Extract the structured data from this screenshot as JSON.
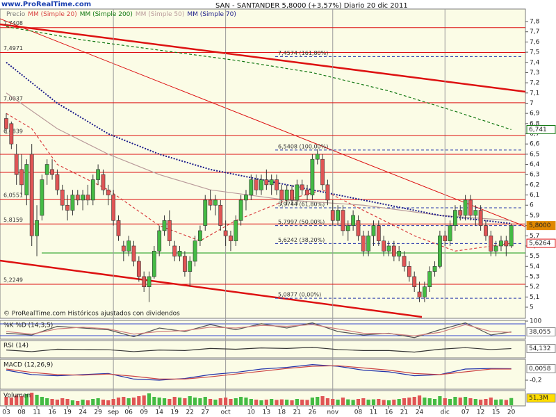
{
  "header": {
    "site": "www.ProRealTime.com",
    "title": "SAN - SANTANDER   5,8000 (+3,57%)   Diario  20 dic 2011",
    "footer": "© ProRealTime.com  Históricos ajustados con dividendos"
  },
  "chart_data": {
    "type": "candlestick",
    "categories": [
      "03",
      null,
      null,
      "08",
      null,
      null,
      "11",
      null,
      null,
      "16",
      null,
      null,
      "19",
      null,
      null,
      "24",
      null,
      null,
      "29",
      null,
      null,
      "sep",
      null,
      null,
      "06",
      null,
      null,
      "09",
      null,
      null,
      "14",
      null,
      null,
      "19",
      null,
      null,
      "22",
      null,
      null,
      "27",
      null,
      null,
      null,
      "oct",
      null,
      null,
      null,
      null,
      "10",
      null,
      null,
      "13",
      null,
      null,
      "18",
      null,
      null,
      "21",
      null,
      null,
      "26",
      null,
      null,
      null,
      "nov",
      null,
      null,
      null,
      null,
      "08",
      null,
      null,
      "11",
      null,
      null,
      "16",
      null,
      null,
      "21",
      null,
      null,
      "24",
      null,
      null,
      null,
      null,
      "dic",
      null,
      null,
      null,
      "07",
      null,
      null,
      "12",
      null,
      null,
      "15",
      null,
      null,
      "20"
    ],
    "price": {
      "name": "Precio",
      "up_color": "#44bb44",
      "down_color": "#e05555",
      "open": [
        6.85,
        6.8,
        6.5,
        6.35,
        6.1,
        6.5,
        5.7,
        5.9,
        6.3,
        6.35,
        6.3,
        6.15,
        6.0,
        5.95,
        6.1,
        6.05,
        6.1,
        6.05,
        6.25,
        6.3,
        6.15,
        6.1,
        5.85,
        5.6,
        5.55,
        5.6,
        5.45,
        5.3,
        5.2,
        5.3,
        5.55,
        5.75,
        5.85,
        5.6,
        5.5,
        5.5,
        5.35,
        5.45,
        5.65,
        5.8,
        6.05,
        6.0,
        6.0,
        5.75,
        5.7,
        5.65,
        5.85,
        6.05,
        6.1,
        6.25,
        6.15,
        6.25,
        6.2,
        6.25,
        6.15,
        6.05,
        6.15,
        6.05,
        6.2,
        6.15,
        6.1,
        6.45,
        6.45,
        6.2,
        5.95,
        5.85,
        5.95,
        5.75,
        5.8,
        5.85,
        5.7,
        5.55,
        5.7,
        5.8,
        5.65,
        5.55,
        5.6,
        5.5,
        5.5,
        5.4,
        5.3,
        5.15,
        5.1,
        5.2,
        5.35,
        5.4,
        5.7,
        5.65,
        5.8,
        5.95,
        5.9,
        6.05,
        5.9,
        5.95,
        5.8,
        5.7,
        5.55,
        5.6,
        5.65,
        5.6
      ],
      "high": [
        6.9,
        6.82,
        6.6,
        6.5,
        6.45,
        6.6,
        6.0,
        6.3,
        6.45,
        6.45,
        6.35,
        6.2,
        6.1,
        6.15,
        6.15,
        6.15,
        6.2,
        6.3,
        6.4,
        6.35,
        6.2,
        6.15,
        5.9,
        5.65,
        5.7,
        5.65,
        5.5,
        5.35,
        5.35,
        5.6,
        5.8,
        5.9,
        5.95,
        5.65,
        5.6,
        5.55,
        5.5,
        5.7,
        5.8,
        6.1,
        6.15,
        6.1,
        6.05,
        5.85,
        5.75,
        5.9,
        6.1,
        6.15,
        6.3,
        6.3,
        6.3,
        6.35,
        6.3,
        6.3,
        6.2,
        6.2,
        6.2,
        6.25,
        6.25,
        6.2,
        6.5,
        6.55,
        6.5,
        6.25,
        6.05,
        6.0,
        6.0,
        5.85,
        5.95,
        5.9,
        5.75,
        5.75,
        5.85,
        5.85,
        5.7,
        5.65,
        5.65,
        5.6,
        5.55,
        5.45,
        5.35,
        5.25,
        5.25,
        5.4,
        5.45,
        5.75,
        5.75,
        5.85,
        6.0,
        6.0,
        6.1,
        6.1,
        6.0,
        6.0,
        5.85,
        5.75,
        5.65,
        5.7,
        5.7,
        5.82
      ],
      "low": [
        6.7,
        6.55,
        6.2,
        6.1,
        6.0,
        5.6,
        5.5,
        5.85,
        6.2,
        6.25,
        6.1,
        5.95,
        5.85,
        5.9,
        6.0,
        5.95,
        6.0,
        6.0,
        6.2,
        6.1,
        6.0,
        5.8,
        5.65,
        5.45,
        5.5,
        5.4,
        5.25,
        5.15,
        5.05,
        5.28,
        5.5,
        5.7,
        5.6,
        5.45,
        5.45,
        5.3,
        5.2,
        5.4,
        5.6,
        5.75,
        5.95,
        5.9,
        5.75,
        5.6,
        5.55,
        5.6,
        5.8,
        5.95,
        6.05,
        6.1,
        6.1,
        6.15,
        6.1,
        6.1,
        6.0,
        6.0,
        6.0,
        6.0,
        6.1,
        6.05,
        6.05,
        6.4,
        6.15,
        6.0,
        5.8,
        5.8,
        5.7,
        5.65,
        5.75,
        5.65,
        5.5,
        5.5,
        5.6,
        5.6,
        5.5,
        5.5,
        5.45,
        5.45,
        5.35,
        5.25,
        5.15,
        5.05,
        5.05,
        5.15,
        5.3,
        5.38,
        5.6,
        5.6,
        5.75,
        5.85,
        5.85,
        5.85,
        5.8,
        5.75,
        5.65,
        5.5,
        5.5,
        5.55,
        5.5,
        5.58
      ],
      "close": [
        6.75,
        6.6,
        6.3,
        6.2,
        6.4,
        5.7,
        5.85,
        6.25,
        6.4,
        6.3,
        6.15,
        6.0,
        5.95,
        6.1,
        6.05,
        6.1,
        6.05,
        6.25,
        6.35,
        6.15,
        6.1,
        5.85,
        5.7,
        5.55,
        5.65,
        5.45,
        5.3,
        5.2,
        5.3,
        5.55,
        5.75,
        5.85,
        5.65,
        5.5,
        5.55,
        5.35,
        5.45,
        5.65,
        5.75,
        6.05,
        6.0,
        6.05,
        5.8,
        5.7,
        5.65,
        5.85,
        6.05,
        6.1,
        6.25,
        6.15,
        6.25,
        6.2,
        6.25,
        6.15,
        6.05,
        6.15,
        6.05,
        6.2,
        6.15,
        6.1,
        6.45,
        6.5,
        6.2,
        6.05,
        5.85,
        5.95,
        5.75,
        5.8,
        5.9,
        5.7,
        5.55,
        5.7,
        5.8,
        5.65,
        5.55,
        5.6,
        5.5,
        5.55,
        5.4,
        5.3,
        5.2,
        5.1,
        5.2,
        5.35,
        5.4,
        5.7,
        5.65,
        5.8,
        5.95,
        5.9,
        6.05,
        5.9,
        5.95,
        5.8,
        5.7,
        5.55,
        5.6,
        5.65,
        5.6,
        5.8
      ]
    },
    "series": [
      {
        "name": "MM (Simple 20)",
        "color": "#d94040",
        "style": "dashed",
        "x": [
          0,
          5,
          10,
          20,
          30,
          38,
          45,
          55,
          62,
          70,
          80,
          88,
          99
        ],
        "values": [
          6.9,
          6.75,
          6.4,
          6.15,
          5.8,
          5.65,
          5.85,
          6.05,
          6.15,
          5.95,
          5.7,
          5.55,
          5.6264
        ]
      },
      {
        "name": "MM (Simple 200)",
        "color": "#117711",
        "style": "dashed",
        "x": [
          0,
          15,
          30,
          45,
          60,
          75,
          88,
          99
        ],
        "values": [
          7.75,
          7.62,
          7.52,
          7.42,
          7.3,
          7.12,
          6.92,
          6.741
        ]
      },
      {
        "name": "MM (Simple 50)",
        "color": "#b99a9a",
        "style": "solid",
        "x": [
          0,
          10,
          20,
          30,
          40,
          55,
          70,
          85,
          99
        ],
        "values": [
          7.1,
          6.75,
          6.5,
          6.3,
          6.15,
          6.05,
          6.0,
          5.9,
          5.85
        ]
      },
      {
        "name": "MM (Simple 70)",
        "color": "#1a1a8a",
        "style": "dotted",
        "x": [
          0,
          10,
          20,
          30,
          40,
          55,
          70,
          85,
          99
        ],
        "values": [
          7.4,
          7.0,
          6.7,
          6.5,
          6.35,
          6.2,
          6.05,
          5.9,
          5.82
        ]
      }
    ],
    "ylim": [
      4.891,
      7.923
    ],
    "yticks": [
      5,
      {
        "value": 5.1,
        "label": "5,1"
      },
      {
        "value": 5.2,
        "label": "5,2"
      },
      {
        "value": 5.3,
        "label": "5,3"
      },
      {
        "value": 5.4,
        "label": "5,4"
      },
      {
        "value": 5.5,
        "label": "5,5"
      },
      {
        "value": 5.6,
        "label": "5,6"
      },
      {
        "value": 5.7,
        "label": "5,7"
      },
      {
        "value": 5.8,
        "label": "5,8"
      },
      {
        "value": 5.9,
        "label": "5,9"
      },
      6,
      {
        "value": 6.1,
        "label": "6,1"
      },
      {
        "value": 6.2,
        "label": "6,2"
      },
      {
        "value": 6.3,
        "label": "6,3"
      },
      {
        "value": 6.4,
        "label": "6,4"
      },
      {
        "value": 6.5,
        "label": "6,5"
      },
      {
        "value": 6.6,
        "label": "6,6"
      },
      {
        "value": 6.7,
        "label": "6,7"
      },
      {
        "value": 6.8,
        "label": "6,8"
      },
      {
        "value": 6.9,
        "label": "6,9"
      },
      7,
      {
        "value": 7.1,
        "label": "7,1"
      },
      {
        "value": 7.2,
        "label": "7,2"
      },
      {
        "value": 7.3,
        "label": "7,3"
      },
      {
        "value": 7.4,
        "label": "7,4"
      },
      {
        "value": 7.5,
        "label": "7,5"
      },
      {
        "value": 7.6,
        "label": "7,6"
      },
      {
        "value": 7.7,
        "label": "7,7"
      },
      {
        "value": 7.8,
        "label": "7,8"
      }
    ],
    "levels": [
      {
        "value": 7.7408,
        "label": "7,7408"
      },
      {
        "value": 7.4971,
        "label": "7,4971"
      },
      {
        "value": 7.0037,
        "label": "7,0037"
      },
      {
        "value": 6.6839,
        "label": "6,6839"
      },
      {
        "value": 6.0551,
        "label": "6,0551"
      },
      {
        "value": 5.8159,
        "label": "5,8159"
      },
      {
        "value": 5.2249,
        "label": "5,2249"
      }
    ],
    "fibonacci": [
      {
        "value": 7.4574,
        "label": "7,4574 (161,80%)"
      },
      {
        "value": 6.5408,
        "label": "6,5408 (100,00%)"
      },
      {
        "value": 5.9744,
        "label": "5,9744 (61,80%)"
      },
      {
        "value": 5.7997,
        "label": "5,7997 (50,00%)"
      },
      {
        "value": 5.6242,
        "label": "5,6242 (38,20%)"
      },
      {
        "value": 5.0877,
        "label": "5,0877 (0,00%)"
      }
    ],
    "price_tags": [
      {
        "value": 6.741,
        "label": "6,741",
        "color": "#117711"
      },
      {
        "value": 5.8,
        "label": "5,8000",
        "color": "#e08800"
      },
      {
        "value": 5.6264,
        "label": "5,6264",
        "color": "#dd1111"
      }
    ],
    "panels": [
      {
        "title": "%K %D (14,3,5)",
        "ylim": [
          0,
          100
        ],
        "yticks": [
          100
        ],
        "last": {
          "value": 38.055,
          "label": "38,055"
        },
        "series": [
          {
            "color": "#555555",
            "x": [
              0,
              5,
              10,
              15,
              20,
              25,
              30,
              35,
              40,
              45,
              50,
              55,
              60,
              65,
              70,
              75,
              80,
              85,
              90,
              95,
              99
            ],
            "values": [
              30,
              20,
              70,
              60,
              50,
              10,
              60,
              40,
              80,
              50,
              85,
              60,
              90,
              40,
              20,
              30,
              5,
              50,
              90,
              20,
              38.055
            ]
          },
          {
            "color": "#d08080",
            "x": [
              0,
              5,
              10,
              15,
              20,
              25,
              30,
              35,
              40,
              45,
              50,
              55,
              60,
              65,
              70,
              75,
              80,
              85,
              90,
              95,
              99
            ],
            "values": [
              40,
              25,
              55,
              65,
              55,
              25,
              40,
              45,
              65,
              60,
              75,
              70,
              80,
              55,
              30,
              28,
              15,
              35,
              80,
              40,
              35
            ]
          }
        ]
      },
      {
        "title": "RSI (14)",
        "ylim": [
          0,
          100
        ],
        "yticks": [],
        "last": {
          "value": 54.132,
          "label": "54,132"
        },
        "series": [
          {
            "color": "#333333",
            "x": [
              0,
              5,
              10,
              15,
              20,
              25,
              30,
              35,
              40,
              45,
              50,
              55,
              60,
              65,
              70,
              75,
              80,
              85,
              90,
              95,
              99
            ],
            "values": [
              45,
              35,
              50,
              48,
              47,
              35,
              45,
              42,
              55,
              50,
              58,
              55,
              62,
              48,
              42,
              42,
              32,
              50,
              60,
              48,
              54.132
            ]
          }
        ]
      },
      {
        "title": "MACD (12,26,9)",
        "ylim": [
          -0.35,
          0.15
        ],
        "yticks": [
          {
            "value": -0.2,
            "label": "-0,2"
          }
        ],
        "last": {
          "value": 0.0058,
          "label": "0,0058"
        },
        "series": [
          {
            "color": "#2233aa",
            "x": [
              0,
              5,
              10,
              15,
              20,
              25,
              30,
              35,
              40,
              45,
              50,
              55,
              60,
              65,
              70,
              75,
              80,
              85,
              90,
              95,
              99
            ],
            "values": [
              -0.02,
              -0.1,
              -0.12,
              -0.1,
              -0.08,
              -0.18,
              -0.2,
              -0.17,
              -0.1,
              -0.06,
              0.0,
              0.03,
              0.08,
              0.05,
              -0.02,
              -0.05,
              -0.12,
              -0.1,
              0.0,
              0.01,
              0.0058
            ]
          },
          {
            "color": "#cc4444",
            "x": [
              0,
              5,
              10,
              15,
              20,
              25,
              30,
              35,
              40,
              45,
              50,
              55,
              60,
              65,
              70,
              75,
              80,
              85,
              90,
              95,
              99
            ],
            "values": [
              0,
              -0.06,
              -0.1,
              -0.11,
              -0.09,
              -0.13,
              -0.18,
              -0.18,
              -0.14,
              -0.09,
              -0.04,
              0.01,
              0.05,
              0.06,
              0.02,
              -0.02,
              -0.08,
              -0.1,
              -0.05,
              0.0,
              0.0
            ]
          }
        ]
      },
      {
        "title": "Volumen",
        "ylim": [
          0,
          100
        ],
        "yticks": [],
        "last": {
          "value": 51.3,
          "label": "51,3M"
        },
        "bars": [
          60,
          55,
          70,
          65,
          80,
          90,
          75,
          60,
          50,
          45,
          40,
          50,
          45,
          35,
          30,
          40,
          35,
          45,
          50,
          40,
          35,
          45,
          55,
          60,
          50,
          55,
          65,
          70,
          85,
          60,
          55,
          50,
          45,
          60,
          55,
          50,
          65,
          55,
          50,
          60,
          45,
          40,
          50,
          55,
          45,
          50,
          60,
          55,
          45,
          40,
          35,
          40,
          45,
          38,
          42,
          40,
          35,
          45,
          40,
          38,
          55,
          60,
          65,
          50,
          45,
          40,
          55,
          42,
          38,
          45,
          50,
          40,
          42,
          45,
          38,
          35,
          40,
          45,
          50,
          55,
          60,
          70,
          55,
          50,
          45,
          65,
          50,
          45,
          60,
          55,
          60,
          50,
          45,
          40,
          45,
          55,
          40,
          42,
          38,
          51.3
        ]
      }
    ]
  }
}
